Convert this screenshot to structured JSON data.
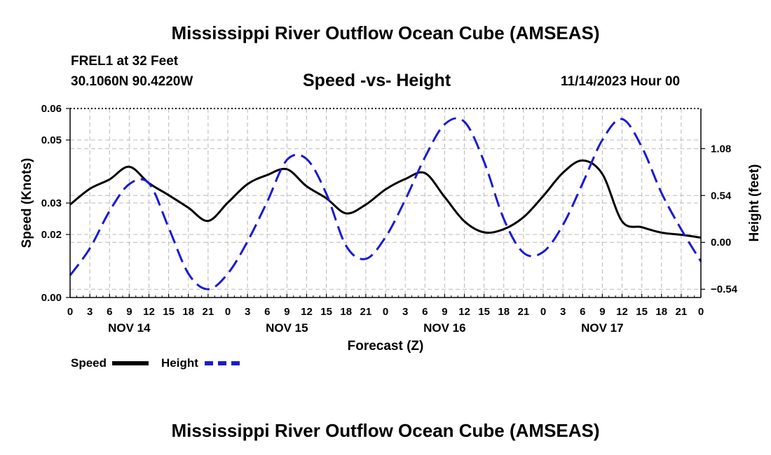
{
  "page_title": "Mississippi River Outflow Ocean Cube (AMSEAS)",
  "footer_title": "Mississippi River Outflow Ocean Cube (AMSEAS)",
  "station": {
    "name": "FREL1 at 32 Feet",
    "location": "30.1060N  90.4220W",
    "issued": "11/14/2023 Hour 00"
  },
  "legend": {
    "speed_label": "Speed",
    "height_label": "Height"
  },
  "colors": {
    "speed": "#000000",
    "height": "#1a1ad6",
    "grid": "#b8b8b8"
  },
  "chart_data": {
    "type": "line",
    "title": "Speed -vs- Height",
    "xlabel": "Forecast (Z)",
    "ylabel": "Speed (Knots)",
    "y2label": "Height (feet)",
    "xlim": [
      0,
      96
    ],
    "ylim": [
      0.0,
      0.06
    ],
    "y2lim": [
      -0.635,
      1.542
    ],
    "yticks": [
      0.0,
      0.02,
      0.03,
      0.05,
      0.06
    ],
    "ytick_labels": [
      "0.00",
      "0.02",
      "0.03",
      "0.05",
      "0.06"
    ],
    "y2ticks": [
      -0.54,
      0.0,
      0.54,
      1.08
    ],
    "y2tick_labels": [
      "-0.54",
      "0.00",
      "0.54",
      "1.08"
    ],
    "xticks": [
      0,
      3,
      6,
      9,
      12,
      15,
      18,
      21,
      24,
      27,
      30,
      33,
      36,
      39,
      42,
      45,
      48,
      51,
      54,
      57,
      60,
      63,
      66,
      69,
      72,
      75,
      78,
      81,
      84,
      87,
      90,
      93,
      96
    ],
    "xtick_labels": [
      "0",
      "3",
      "6",
      "9",
      "12",
      "15",
      "18",
      "21",
      "0",
      "3",
      "6",
      "9",
      "12",
      "15",
      "18",
      "21",
      "0",
      "3",
      "6",
      "9",
      "12",
      "15",
      "18",
      "21",
      "0",
      "3",
      "6",
      "9",
      "12",
      "15",
      "18",
      "21",
      "0"
    ],
    "day_labels": [
      {
        "x": 9,
        "label": "NOV 14"
      },
      {
        "x": 33,
        "label": "NOV 15"
      },
      {
        "x": 57,
        "label": "NOV 16"
      },
      {
        "x": 81,
        "label": "NOV 17"
      }
    ],
    "grid": true,
    "series": [
      {
        "name": "Speed",
        "axis": "left",
        "style": "solid",
        "x": [
          0,
          3,
          6,
          9,
          12,
          15,
          18,
          21,
          24,
          27,
          30,
          33,
          36,
          39,
          42,
          45,
          48,
          51,
          54,
          57,
          60,
          63,
          66,
          69,
          72,
          75,
          78,
          81,
          84,
          87,
          90,
          93,
          96
        ],
        "values": [
          0.0295,
          0.0345,
          0.0375,
          0.0415,
          0.0363,
          0.0325,
          0.0285,
          0.0243,
          0.0301,
          0.036,
          0.0389,
          0.0407,
          0.0353,
          0.0315,
          0.0267,
          0.0295,
          0.0343,
          0.0376,
          0.0395,
          0.0319,
          0.0242,
          0.0207,
          0.0217,
          0.0255,
          0.0322,
          0.0396,
          0.0435,
          0.0392,
          0.0242,
          0.0223,
          0.0206,
          0.0199,
          0.019
        ]
      },
      {
        "name": "Height",
        "axis": "right",
        "style": "dashed",
        "x": [
          0,
          3,
          6,
          9,
          12,
          15,
          18,
          21,
          24,
          27,
          30,
          33,
          36,
          39,
          42,
          45,
          48,
          51,
          54,
          57,
          60,
          63,
          66,
          69,
          72,
          75,
          78,
          81,
          84,
          87,
          90,
          93,
          96
        ],
        "values": [
          -0.38,
          -0.07,
          0.36,
          0.67,
          0.68,
          0.17,
          -0.36,
          -0.54,
          -0.36,
          0.01,
          0.47,
          0.95,
          0.96,
          0.56,
          -0.04,
          -0.19,
          0.06,
          0.49,
          0.98,
          1.36,
          1.39,
          0.93,
          0.27,
          -0.12,
          -0.11,
          0.2,
          0.68,
          1.18,
          1.42,
          1.1,
          0.57,
          0.15,
          -0.22
        ]
      }
    ]
  }
}
